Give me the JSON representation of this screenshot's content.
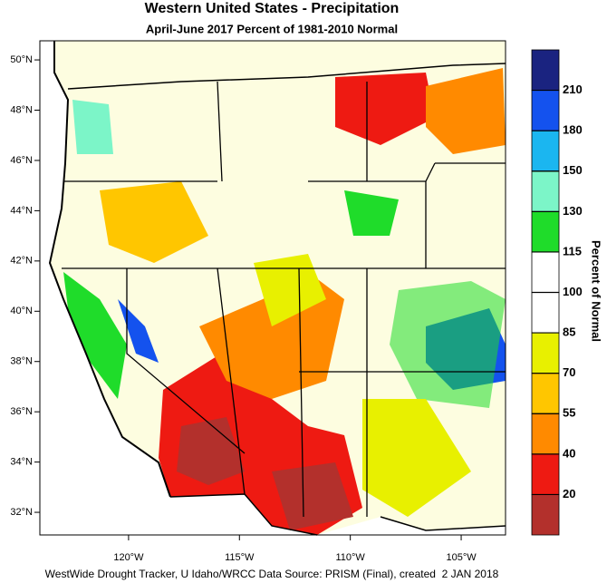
{
  "title": "Western United States - Precipitation",
  "subtitle": "April-June 2017  Percent of 1981-2010 Normal",
  "footer": "WestWide Drought Tracker, U Idaho/WRCC Data Source: PRISM (Final), created  2 JAN 2018",
  "lonlim": [
    -124.0,
    -103.0
  ],
  "latlim": [
    31.1,
    50.76
  ],
  "lat_ticks": [
    {
      "value": 50,
      "label": "50°N"
    },
    {
      "value": 48,
      "label": "48°N"
    },
    {
      "value": 46,
      "label": "46°N"
    },
    {
      "value": 44,
      "label": "44°N"
    },
    {
      "value": 42,
      "label": "42°N"
    },
    {
      "value": 40,
      "label": "40°N"
    },
    {
      "value": 38,
      "label": "38°N"
    },
    {
      "value": 36,
      "label": "36°N"
    },
    {
      "value": 34,
      "label": "34°N"
    },
    {
      "value": 32,
      "label": "32°N"
    }
  ],
  "lon_ticks": [
    {
      "value": -120,
      "label": "120°W"
    },
    {
      "value": -115,
      "label": "115°W"
    },
    {
      "value": -110,
      "label": "110°W"
    },
    {
      "value": -105,
      "label": "105°W"
    }
  ],
  "colorbar": {
    "title": "Percent of Normal",
    "ticks": [
      20,
      40,
      55,
      70,
      85,
      100,
      115,
      130,
      150,
      180,
      210
    ],
    "colors": [
      "#b3302c",
      "#ee1a12",
      "#ff8a00",
      "#ffc600",
      "#e8f000",
      "#ffffff",
      "#ffffff",
      "#1fdc2a",
      "#7cf5c8",
      "#1bb6f0",
      "#1452ee",
      "#1a2380"
    ]
  }
}
